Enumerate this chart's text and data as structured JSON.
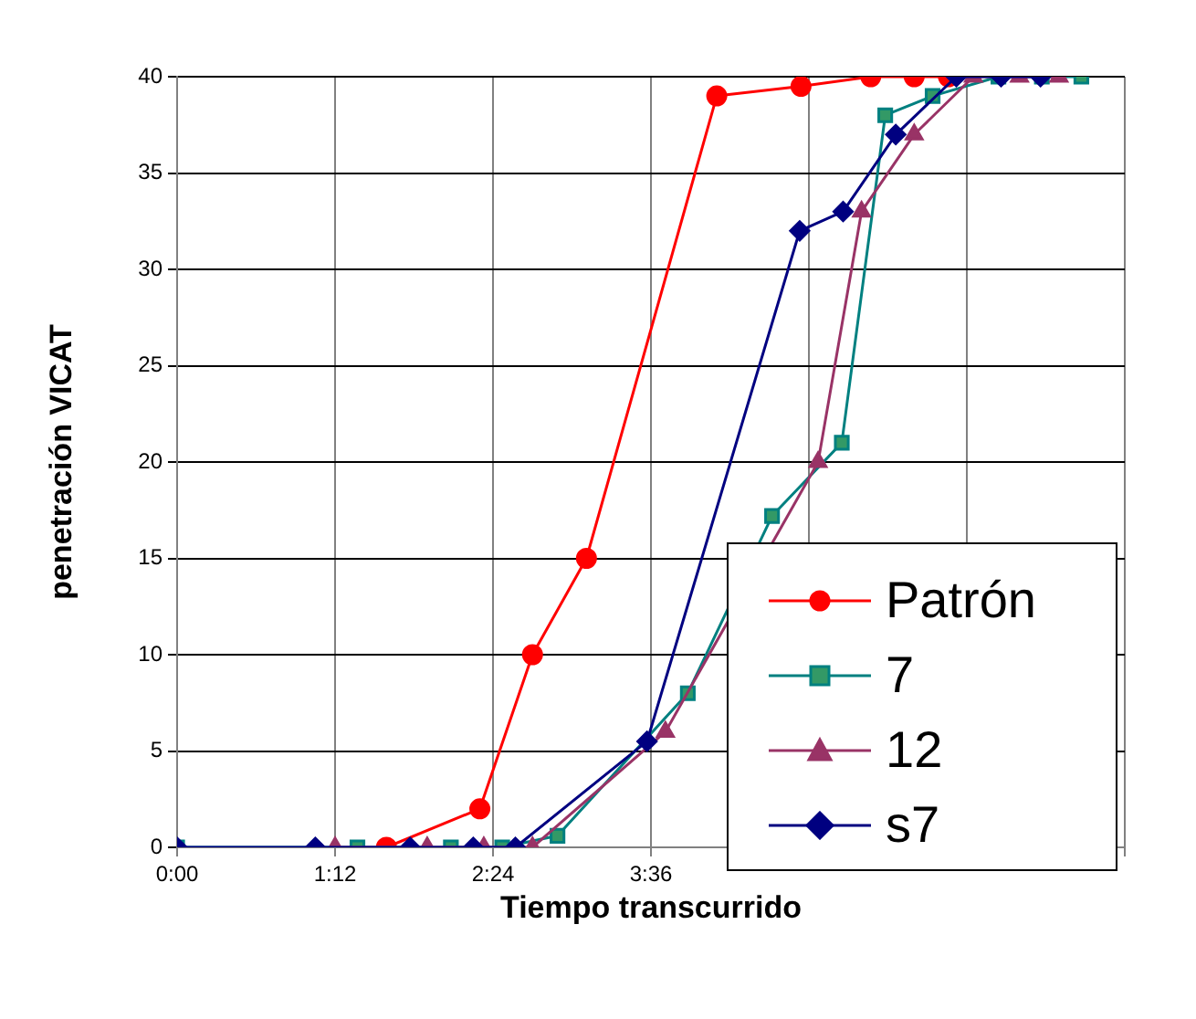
{
  "chart_data": {
    "type": "line",
    "xlabel": "Tiempo transcurrido",
    "ylabel": "penetración VICAT",
    "xlim": [
      0,
      7.2
    ],
    "xticks": [
      {
        "value": 0,
        "label": "0:00"
      },
      {
        "value": 1.2,
        "label": "1:12"
      },
      {
        "value": 2.4,
        "label": "2:24"
      },
      {
        "value": 3.6,
        "label": "3:36"
      },
      {
        "value": 4.8,
        "label": null
      },
      {
        "value": 6,
        "label": null
      },
      {
        "value": 7.2,
        "label": null
      }
    ],
    "ylim": [
      0,
      40
    ],
    "yticks": [
      0,
      5,
      10,
      15,
      20,
      25,
      30,
      35,
      40
    ],
    "grid": true,
    "legend": "bottom right",
    "line_style": "solid",
    "series": [
      {
        "name": "Patrón",
        "color": "#ff0000",
        "marker": "circle",
        "x": [
          1.59,
          2.3,
          2.7,
          3.11,
          4.1,
          4.74,
          5.27,
          5.6,
          5.86
        ],
        "values": [
          0,
          2,
          10,
          15,
          39,
          39.5,
          40,
          40,
          40
        ]
      },
      {
        "name": "7",
        "color": "#008080",
        "marker": "square",
        "x": [
          0,
          1.37,
          2.08,
          2.47,
          2.89,
          3.88,
          4.52,
          5.05,
          5.38,
          5.74,
          6.24,
          6.57,
          6.87
        ],
        "values": [
          0,
          0,
          0,
          0,
          0.6,
          8,
          17.2,
          21,
          38,
          39,
          40,
          40,
          40
        ]
      },
      {
        "name": "12",
        "color": "#993366",
        "marker": "triangle",
        "x": [
          1.2,
          1.9,
          2.33,
          2.7,
          3.71,
          4.87,
          5.2,
          5.6,
          6.05,
          6.4,
          6.7
        ],
        "values": [
          0,
          0,
          0,
          0,
          6,
          20,
          33,
          37,
          40,
          40,
          40
        ]
      },
      {
        "name": "s7",
        "color": "#000080",
        "marker": "diamond",
        "x": [
          0,
          1.05,
          1.77,
          2.25,
          2.57,
          3.57,
          4.73,
          5.06,
          5.46,
          5.92,
          6.26,
          6.56
        ],
        "values": [
          0,
          0,
          0,
          0,
          0,
          5.5,
          32,
          33,
          37,
          40,
          40,
          40
        ]
      }
    ]
  }
}
